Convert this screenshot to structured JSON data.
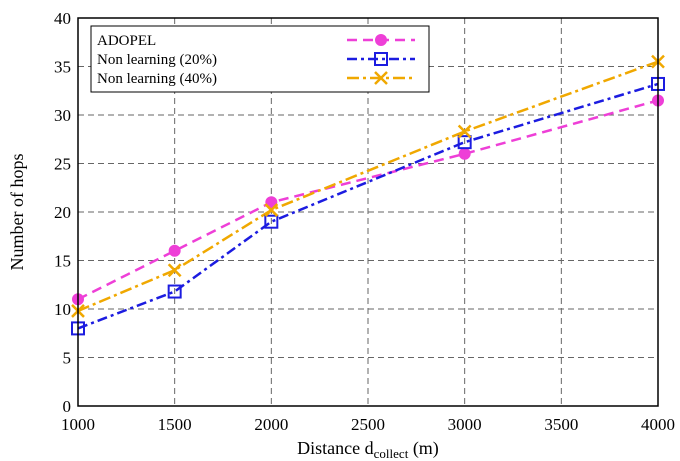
{
  "chart_data": {
    "type": "line",
    "x": [
      1000,
      1500,
      2000,
      3000,
      4000
    ],
    "xlim": [
      1000,
      4000
    ],
    "ylim": [
      0,
      40
    ],
    "xticks": [
      "1000",
      "1500",
      "2000",
      "2500",
      "3000",
      "3500",
      "4000"
    ],
    "yticks": [
      "0",
      "5",
      "10",
      "15",
      "20",
      "25",
      "30",
      "35",
      "40"
    ],
    "xlabel_main": "Distance d",
    "xlabel_sub": "collect",
    "xlabel_unit": " (m)",
    "ylabel": "Number of hops",
    "grid": true,
    "legend_position": "top-left",
    "series": [
      {
        "name": "ADOPEL",
        "values": [
          11,
          16,
          21,
          26,
          31.5
        ],
        "color": "#ee3fd7",
        "marker": "filled-circle",
        "dash": "10,6"
      },
      {
        "name": "Non learning (20%)",
        "values": [
          8,
          11.8,
          19,
          27.2,
          33.2
        ],
        "color": "#1c1ce0",
        "marker": "open-square",
        "dash": "10,4,3,4"
      },
      {
        "name": "Non learning (40%)",
        "values": [
          9.8,
          14,
          20.2,
          28.3,
          35.5
        ],
        "color": "#f0a800",
        "marker": "x-cross",
        "dash": "12,4,3,4"
      }
    ]
  }
}
